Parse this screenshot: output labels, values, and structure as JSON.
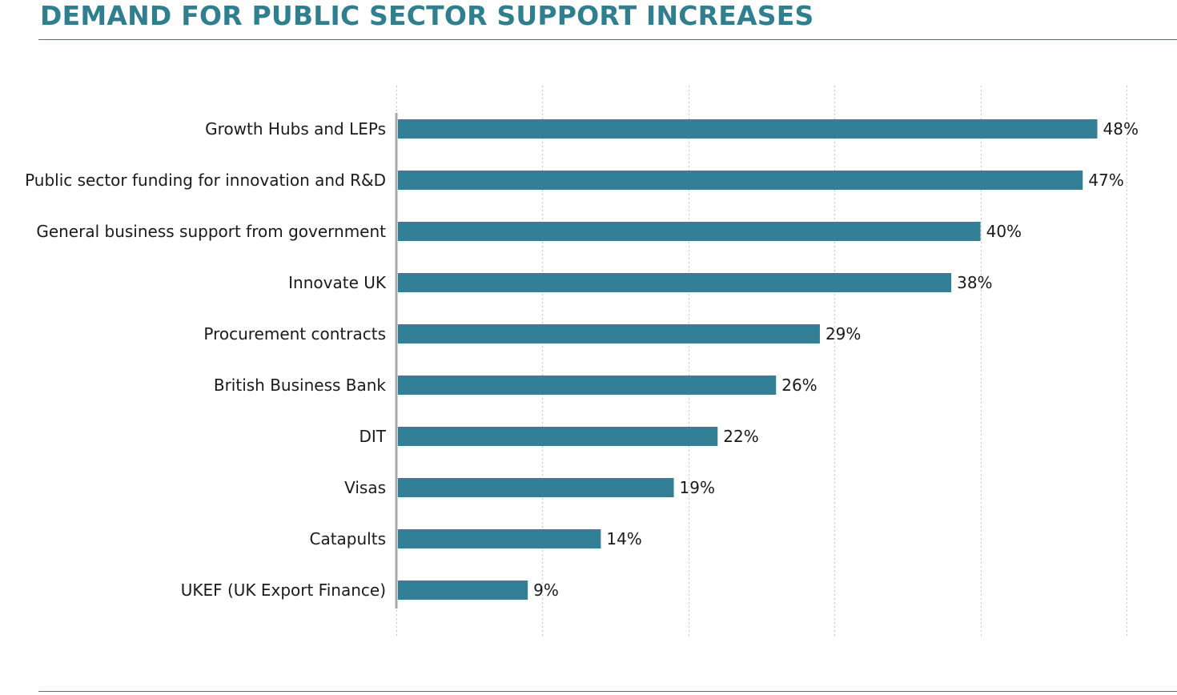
{
  "colors": {
    "title": "#2f7f8f",
    "rule": "#2f7f8f",
    "bar": "#337f95",
    "grid": "#c8c8c8",
    "axis": "#a8a8a8"
  },
  "chart_data": {
    "type": "bar",
    "orientation": "horizontal",
    "title": "DEMAND FOR PUBLIC SECTOR SUPPORT INCREASES",
    "categories": [
      "Growth Hubs and LEPs",
      "Public sector funding for innovation and R&D",
      "General business support from government",
      "Innovate UK",
      "Procurement contracts",
      "British Business Bank",
      "DIT",
      "Visas",
      "Catapults",
      "UKEF (UK Export Finance)"
    ],
    "values": [
      48,
      47,
      40,
      38,
      29,
      26,
      22,
      19,
      14,
      9
    ],
    "value_labels": [
      "48%",
      "47%",
      "40%",
      "38%",
      "29%",
      "26%",
      "22%",
      "19%",
      "14%",
      "9%"
    ],
    "xlim": [
      0,
      50
    ],
    "grid": true,
    "legend": "none"
  }
}
